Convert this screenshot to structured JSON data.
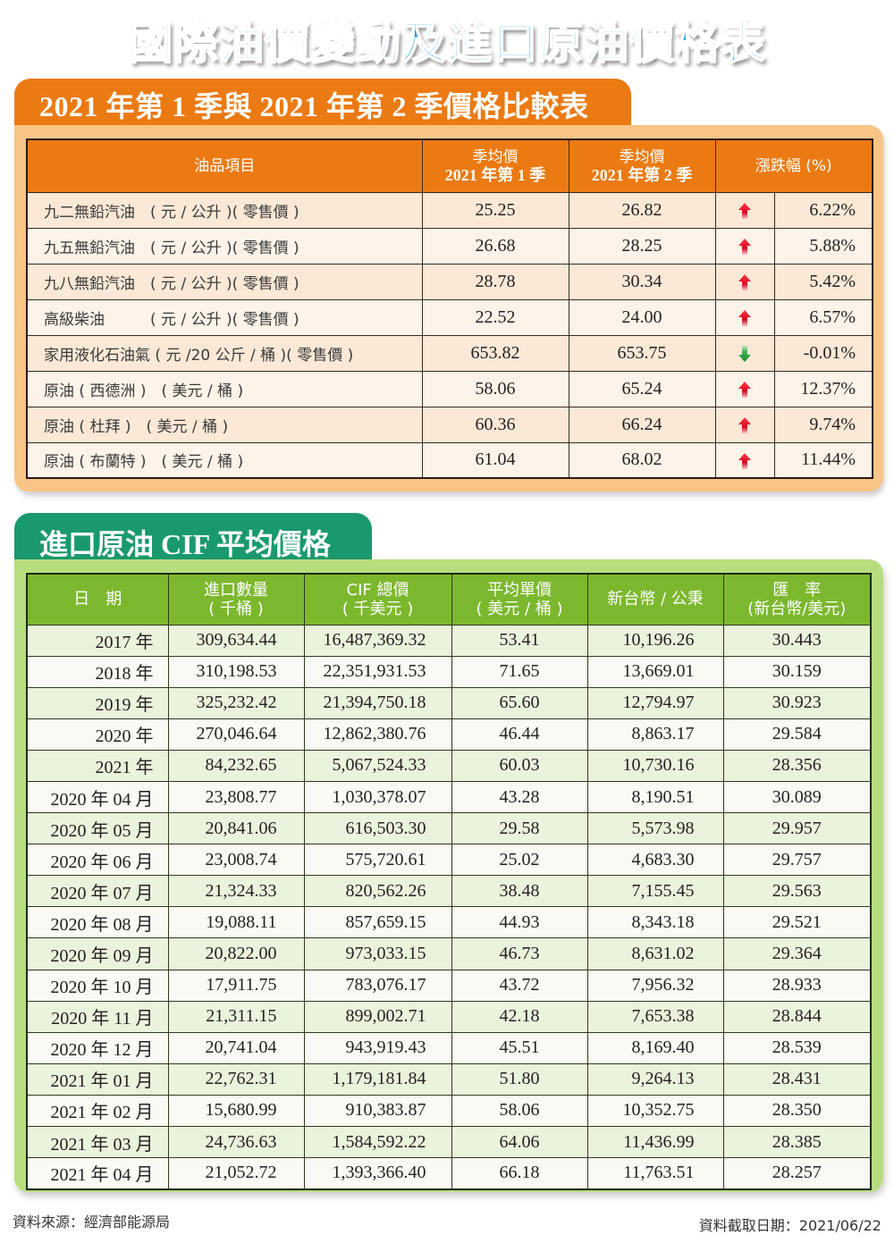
{
  "title": "國際油價變動及進口原油價格表",
  "section1": {
    "heading": "2021 年第 1 季與 2021 年第 2 季價格比較表",
    "headers": {
      "item": "油品項目",
      "q1_line1": "季均價",
      "q1_line2": "2021 年第 1 季",
      "q2_line1": "季均價",
      "q2_line2": "2021 年第 2 季",
      "change": "漲跌幅 (%)"
    },
    "rows": [
      {
        "item": "九二無鉛汽油　( 元 / 公升 )( 零售價 )",
        "q1": "25.25",
        "q2": "26.82",
        "direction": "up",
        "change": "6.22%"
      },
      {
        "item": "九五無鉛汽油　( 元 / 公升 )( 零售價 )",
        "q1": "26.68",
        "q2": "28.25",
        "direction": "up",
        "change": "5.88%"
      },
      {
        "item": "九八無鉛汽油　( 元 / 公升 )( 零售價 )",
        "q1": "28.78",
        "q2": "30.34",
        "direction": "up",
        "change": "5.42%"
      },
      {
        "item": "高級柴油　　　( 元 / 公升 )( 零售價 )",
        "q1": "22.52",
        "q2": "24.00",
        "direction": "up",
        "change": "6.57%"
      },
      {
        "item": "家用液化石油氣 ( 元 /20 公斤 / 桶 )( 零售價 )",
        "q1": "653.82",
        "q2": "653.75",
        "direction": "down",
        "change": "-0.01%"
      },
      {
        "item": "原油 ( 西德洲 )　( 美元 / 桶 )",
        "q1": "58.06",
        "q2": "65.24",
        "direction": "up",
        "change": "12.37%"
      },
      {
        "item": "原油 ( 杜拜 )　( 美元 / 桶 )",
        "q1": "60.36",
        "q2": "66.24",
        "direction": "up",
        "change": "9.74%"
      },
      {
        "item": "原油 ( 布蘭特 )　( 美元 / 桶 )",
        "q1": "61.04",
        "q2": "68.02",
        "direction": "up",
        "change": "11.44%"
      }
    ]
  },
  "section2": {
    "heading": "進口原油 CIF 平均價格",
    "headers": {
      "date": "日　期",
      "qty_line1": "進口數量",
      "qty_line2": "( 千桶 )",
      "cif_line1": "CIF 總價",
      "cif_line2": "( 千美元 )",
      "avg_line1": "平均單價",
      "avg_line2": "( 美元 / 桶 )",
      "ntd": "新台幣 / 公秉",
      "fx_line1": "匯　率",
      "fx_line2": "(新台幣/美元)"
    },
    "rows": [
      {
        "date": "2017 年",
        "qty": "309,634.44",
        "cif": "16,487,369.32",
        "avg": "53.41",
        "ntd": "10,196.26",
        "fx": "30.443"
      },
      {
        "date": "2018 年",
        "qty": "310,198.53",
        "cif": "22,351,931.53",
        "avg": "71.65",
        "ntd": "13,669.01",
        "fx": "30.159"
      },
      {
        "date": "2019 年",
        "qty": "325,232.42",
        "cif": "21,394,750.18",
        "avg": "65.60",
        "ntd": "12,794.97",
        "fx": "30.923"
      },
      {
        "date": "2020 年",
        "qty": "270,046.64",
        "cif": "12,862,380.76",
        "avg": "46.44",
        "ntd": "8,863.17",
        "fx": "29.584"
      },
      {
        "date": "2021 年",
        "qty": "84,232.65",
        "cif": "5,067,524.33",
        "avg": "60.03",
        "ntd": "10,730.16",
        "fx": "28.356"
      },
      {
        "date": "2020 年 04 月",
        "qty": "23,808.77",
        "cif": "1,030,378.07",
        "avg": "43.28",
        "ntd": "8,190.51",
        "fx": "30.089"
      },
      {
        "date": "2020 年 05 月",
        "qty": "20,841.06",
        "cif": "616,503.30",
        "avg": "29.58",
        "ntd": "5,573.98",
        "fx": "29.957"
      },
      {
        "date": "2020 年 06 月",
        "qty": "23,008.74",
        "cif": "575,720.61",
        "avg": "25.02",
        "ntd": "4,683.30",
        "fx": "29.757"
      },
      {
        "date": "2020 年 07 月",
        "qty": "21,324.33",
        "cif": "820,562.26",
        "avg": "38.48",
        "ntd": "7,155.45",
        "fx": "29.563"
      },
      {
        "date": "2020 年 08 月",
        "qty": "19,088.11",
        "cif": "857,659.15",
        "avg": "44.93",
        "ntd": "8,343.18",
        "fx": "29.521"
      },
      {
        "date": "2020 年 09 月",
        "qty": "20,822.00",
        "cif": "973,033.15",
        "avg": "46.73",
        "ntd": "8,631.02",
        "fx": "29.364"
      },
      {
        "date": "2020 年 10 月",
        "qty": "17,911.75",
        "cif": "783,076.17",
        "avg": "43.72",
        "ntd": "7,956.32",
        "fx": "28.933"
      },
      {
        "date": "2020 年 11 月",
        "qty": "21,311.15",
        "cif": "899,002.71",
        "avg": "42.18",
        "ntd": "7,653.38",
        "fx": "28.844"
      },
      {
        "date": "2020 年 12 月",
        "qty": "20,741.04",
        "cif": "943,919.43",
        "avg": "45.51",
        "ntd": "8,169.40",
        "fx": "28.539"
      },
      {
        "date": "2021 年 01 月",
        "qty": "22,762.31",
        "cif": "1,179,181.84",
        "avg": "51.80",
        "ntd": "9,264.13",
        "fx": "28.431"
      },
      {
        "date": "2021 年 02 月",
        "qty": "15,680.99",
        "cif": "910,383.87",
        "avg": "58.06",
        "ntd": "10,352.75",
        "fx": "28.350"
      },
      {
        "date": "2021 年 03 月",
        "qty": "24,736.63",
        "cif": "1,584,592.22",
        "avg": "64.06",
        "ntd": "11,436.99",
        "fx": "28.385"
      },
      {
        "date": "2021 年 04 月",
        "qty": "21,052.72",
        "cif": "1,393,366.40",
        "avg": "66.18",
        "ntd": "11,763.51",
        "fx": "28.257"
      }
    ]
  },
  "footer": {
    "source": "資料來源：經濟部能源局",
    "date": "資料截取日期：2021/06/22"
  },
  "colors": {
    "title": "#1aa0e0",
    "orange_accent": "#ec7a12",
    "orange_panel": "#f8c584",
    "green_tab": "#1a9a6c",
    "green_header": "#7cb82e",
    "green_panel": "#b8dd7e",
    "arrow_up": "#e0102a",
    "arrow_down": "#1e9a3a"
  }
}
